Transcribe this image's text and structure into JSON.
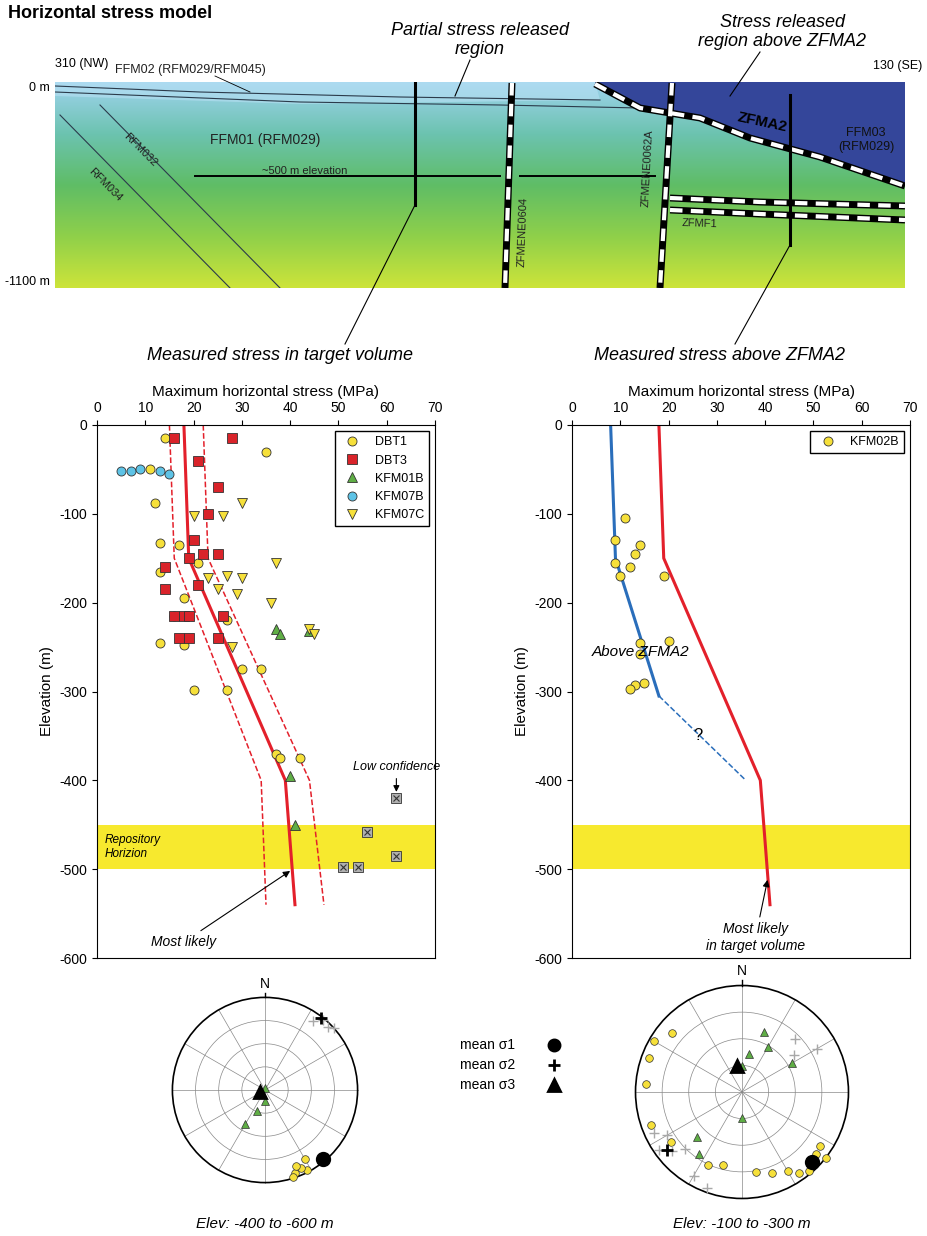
{
  "title": "Horizontal stress model",
  "cross_section": {
    "elevation_range": [
      0,
      -1100
    ],
    "target_elevation": -500,
    "ends": [
      "310 (NW)",
      "130 (SE)"
    ],
    "depth_labels": [
      "0 m",
      "-1100 m"
    ],
    "regions": [
      "Partial stress released\nregion",
      "Stress released\nregion above ZFMA2"
    ],
    "labels": {
      "ffm02": "FFM02 (RFM029/RFM045)",
      "ffm01": "FFM01 (RFM029)",
      "ffm03": "FFM03\n(RFM029)",
      "rfm032": "RFM032",
      "rfm034": "RFM034",
      "zfmene0604": "ZFMENE0604",
      "zfmene0062a": "ZFMENE0062A",
      "zfma2": "ZFMA2",
      "zfmf1": "ZFMF1",
      "elev500": "~500 m elevation"
    }
  },
  "chart_data": [
    {
      "type": "scatter",
      "caption": "Measured stress in target volume",
      "xlabel": "Maximum horizontal stress (MPa)",
      "ylabel": "Elevation (m)",
      "xlim": [
        0,
        70
      ],
      "ylim": [
        -600,
        0
      ],
      "xticks": [
        0,
        10,
        20,
        30,
        40,
        50,
        60,
        70
      ],
      "yticks": [
        -600,
        -500,
        -400,
        -300,
        -200,
        -100,
        0
      ],
      "legend": "upper right",
      "band": {
        "label": "Repository\nHorizion",
        "range": [
          -450,
          -500
        ],
        "color": "#f7e92e"
      },
      "lines": [
        {
          "color": "#e3202b",
          "line_style": "solid",
          "x": [
            18,
            19,
            39,
            41
          ],
          "y": [
            0,
            -150,
            -400,
            -540
          ]
        },
        {
          "color": "#e3202b",
          "line_style": "dashed",
          "x": [
            15,
            16,
            34,
            35
          ],
          "y": [
            0,
            -150,
            -400,
            -540
          ]
        },
        {
          "color": "#e3202b",
          "line_style": "dashed",
          "x": [
            22,
            23,
            44,
            47
          ],
          "y": [
            0,
            -150,
            -400,
            -540
          ]
        }
      ],
      "series": [
        {
          "name": "DBT1",
          "color": "#f6e03a",
          "marker": "circle",
          "x": [
            14,
            35,
            11,
            12,
            17,
            13,
            21,
            13,
            18,
            16,
            27,
            13,
            18,
            34,
            30,
            20,
            27,
            37,
            38,
            42
          ],
          "y": [
            -15,
            -30,
            -50,
            -88,
            -135,
            -133,
            -155,
            -165,
            -195,
            -215,
            -220,
            -245,
            -248,
            -275,
            -275,
            -298,
            -298,
            -370,
            -375,
            -375
          ]
        },
        {
          "name": "DBT3",
          "color": "#d9232a",
          "marker": "square",
          "x": [
            16,
            28,
            21,
            25,
            23,
            20,
            22,
            19,
            25,
            14,
            21,
            16,
            18,
            19,
            26,
            17,
            19,
            25,
            14
          ],
          "y": [
            -15,
            -15,
            -40,
            -70,
            -100,
            -130,
            -145,
            -150,
            -145,
            -185,
            -180,
            -215,
            -215,
            -215,
            -215,
            -240,
            -240,
            -240,
            -160
          ]
        },
        {
          "name": "KFM01B",
          "color": "#5fae45",
          "marker": "triangle_up",
          "x": [
            37,
            38,
            44,
            40,
            41
          ],
          "y": [
            -230,
            -235,
            -232,
            -395,
            -450
          ]
        },
        {
          "name": "KFM07B",
          "color": "#5ec3e6",
          "marker": "circle",
          "x": [
            5,
            7,
            9,
            13,
            15
          ],
          "y": [
            -52,
            -52,
            -50,
            -52,
            -55
          ]
        },
        {
          "name": "KFM07C",
          "color": "#f6e03a",
          "marker": "triangle_down",
          "x": [
            30,
            26,
            20,
            37,
            27,
            23,
            30,
            25,
            29,
            36,
            44,
            45,
            28
          ],
          "y": [
            -88,
            -102,
            -103,
            -155,
            -170,
            -172,
            -172,
            -185,
            -190,
            -200,
            -230,
            -235,
            -250
          ]
        }
      ],
      "extra_points": {
        "color": "#b0b0b0",
        "marker": "crossed_square",
        "x": [
          62,
          56,
          62,
          54,
          51
        ],
        "y": [
          -420,
          -458,
          -485,
          -497,
          -498
        ]
      },
      "annotations": [
        "Low confidence",
        "Most likely"
      ]
    },
    {
      "type": "scatter",
      "caption": "Measured stress above ZFMA2",
      "xlabel": "Maximum horizontal stress (MPa)",
      "ylabel": "Elevation (m)",
      "xlim": [
        0,
        70
      ],
      "ylim": [
        -600,
        0
      ],
      "xticks": [
        0,
        10,
        20,
        30,
        40,
        50,
        60,
        70
      ],
      "yticks": [
        -600,
        -500,
        -400,
        -300,
        -200,
        -100,
        0
      ],
      "legend": "upper right",
      "band": {
        "range": [
          -450,
          -500
        ],
        "color": "#f7e92e"
      },
      "lines": [
        {
          "color": "#e3202b",
          "line_style": "solid",
          "x": [
            18,
            19,
            39,
            41
          ],
          "y": [
            0,
            -150,
            -400,
            -540
          ]
        },
        {
          "color": "#2a6ebb",
          "line_style": "solid",
          "x": [
            8,
            9,
            18
          ],
          "y": [
            0,
            -150,
            -305
          ]
        },
        {
          "color": "#2a6ebb",
          "line_style": "dashed",
          "x": [
            18,
            36
          ],
          "y": [
            -305,
            -400
          ]
        }
      ],
      "series": [
        {
          "name": "KFM02B",
          "color": "#f6e03a",
          "marker": "circle",
          "x": [
            11,
            9,
            14,
            13,
            9,
            12,
            10,
            19,
            20,
            14,
            14,
            15,
            13,
            12
          ],
          "y": [
            -105,
            -130,
            -135,
            -145,
            -155,
            -160,
            -170,
            -170,
            -243,
            -245,
            -258,
            -290,
            -293,
            -297
          ]
        }
      ],
      "annotations": [
        "Above ZFMA2",
        "?",
        "Most likely\nin target volume"
      ]
    }
  ],
  "stereonets": [
    {
      "label": "Elev: -400 to -600 m",
      "north": "N",
      "sigma1": {
        "color": "#f6e03a",
        "marker": "circle",
        "trend": [
          152,
          155,
          160,
          158,
          150,
          162
        ],
        "plunge": [
          3,
          8,
          5,
          12,
          15,
          2
        ],
        "mean": [
          140,
          3
        ]
      },
      "sigma2": {
        "color": "#a8a8a8",
        "marker": "plus",
        "trend": [
          40,
          45,
          35,
          48
        ],
        "plunge": [
          2,
          5,
          10,
          0
        ],
        "mean": [
          38,
          2
        ]
      },
      "sigma3": {
        "color": "#5fae45",
        "marker": "triangle_up",
        "trend": [
          180,
          200,
          250,
          0,
          210
        ],
        "plunge": [
          80,
          70,
          85,
          88,
          55
        ],
        "mean": [
          250,
          85
        ]
      }
    },
    {
      "label": "Elev: -100 to -300 m",
      "north": "N",
      "sigma1": {
        "color": "#f6e03a",
        "marker": "circle",
        "trend": [
          135,
          130,
          140,
          125,
          145,
          128,
          150,
          160,
          170,
          300,
          290,
          275,
          250,
          235,
          195,
          205,
          310
        ],
        "plunge": [
          5,
          10,
          3,
          12,
          8,
          0,
          15,
          20,
          25,
          5,
          8,
          10,
          10,
          20,
          30,
          25,
          15
        ],
        "mean": [
          135,
          8
        ]
      },
      "sigma2": {
        "color": "#a8a8a8",
        "marker": "plus",
        "trend": [
          230,
          240,
          235,
          225,
          45,
          60,
          55,
          210,
          200,
          245
        ],
        "plunge": [
          15,
          20,
          5,
          25,
          30,
          20,
          40,
          10,
          5,
          10
        ],
        "mean": [
          232,
          12
        ]
      },
      "sigma3": {
        "color": "#5fae45",
        "marker": "triangle_up",
        "trend": [
          20,
          30,
          10,
          225,
          215,
          180,
          0,
          60
        ],
        "plunge": [
          40,
          50,
          60,
          40,
          30,
          70,
          70,
          45
        ],
        "mean": [
          350,
          70
        ]
      }
    }
  ],
  "stereonet_legend": [
    {
      "name": "mean σ1",
      "marker": "circle",
      "color": "#000000"
    },
    {
      "name": "mean σ2",
      "marker": "plus",
      "color": "#000000"
    },
    {
      "name": "mean σ3",
      "marker": "triangle_up",
      "color": "#000000"
    }
  ]
}
